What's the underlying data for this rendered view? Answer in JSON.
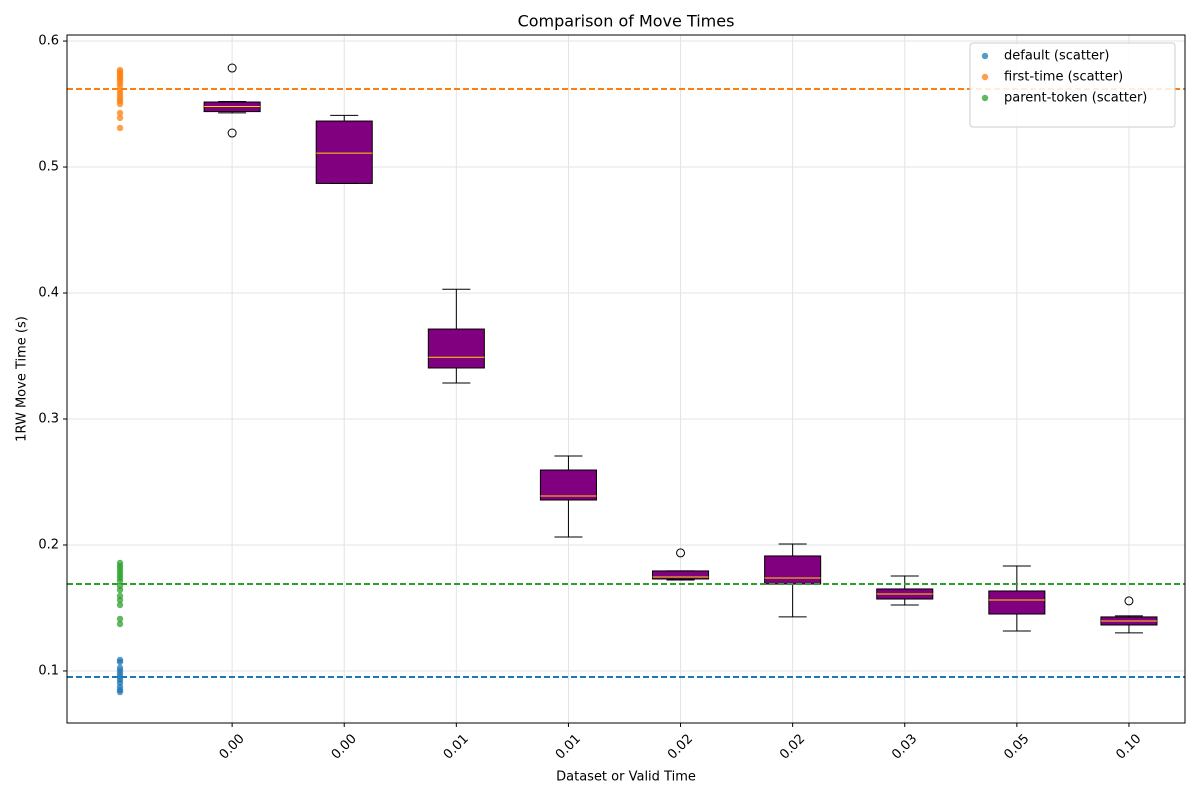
{
  "chart_data": {
    "type": "box",
    "title": "Comparison of Move Times",
    "xlabel": "Dataset or Valid Time",
    "ylabel": "1RW Move Time (s)",
    "categories": [
      null,
      "0.00",
      "0.00",
      "0.01",
      "0.01",
      "0.02",
      "0.02",
      "0.03",
      "0.05",
      "0.10"
    ],
    "xlim": [
      -0.473,
      9.5
    ],
    "ylim": [
      0.0587,
      0.6048
    ],
    "yticks": [
      {
        "value": 0.1,
        "label": "0.1"
      },
      {
        "value": 0.2,
        "label": "0.2"
      },
      {
        "value": 0.3,
        "label": "0.3"
      },
      {
        "value": 0.4,
        "label": "0.4"
      },
      {
        "value": 0.5,
        "label": "0.5"
      },
      {
        "value": 0.6,
        "label": "0.6"
      }
    ],
    "grid": true,
    "legend": "upper right",
    "box_color": "#800080",
    "median_color": "#ffd700",
    "boxes": [
      null,
      {
        "whislo": 0.543,
        "q1": 0.544,
        "med": 0.548,
        "q3": 0.5516,
        "whishi": 0.552,
        "fliers": [
          0.5786,
          0.527
        ]
      },
      {
        "whislo": 0.487,
        "q1": 0.487,
        "med": 0.511,
        "q3": 0.5365,
        "whishi": 0.541,
        "fliers": []
      },
      {
        "whislo": 0.3286,
        "q1": 0.3405,
        "med": 0.349,
        "q3": 0.3714,
        "whishi": 0.403,
        "fliers": []
      },
      {
        "whislo": 0.2063,
        "q1": 0.2357,
        "med": 0.2389,
        "q3": 0.2595,
        "whishi": 0.2706,
        "fliers": []
      },
      {
        "whislo": 0.1722,
        "q1": 0.173,
        "med": 0.1746,
        "q3": 0.1794,
        "whishi": 0.1794,
        "fliers": [
          0.1937
        ]
      },
      {
        "whislo": 0.1429,
        "q1": 0.169,
        "med": 0.1738,
        "q3": 0.1913,
        "whishi": 0.2008,
        "fliers": []
      },
      {
        "whislo": 0.1524,
        "q1": 0.1571,
        "med": 0.1611,
        "q3": 0.1651,
        "whishi": 0.1754,
        "fliers": []
      },
      {
        "whislo": 0.1317,
        "q1": 0.1452,
        "med": 0.1563,
        "q3": 0.1635,
        "whishi": 0.1833,
        "fliers": []
      },
      {
        "whislo": 0.1302,
        "q1": 0.1365,
        "med": 0.1397,
        "q3": 0.1429,
        "whishi": 0.1437,
        "fliers": [
          0.1556
        ]
      }
    ],
    "series": [
      {
        "name": "default (scatter)",
        "color": "#1f77b4",
        "reference_line": 0.0952,
        "values": [
          0.1087,
          0.1071,
          0.1024,
          0.1,
          0.0976,
          0.0952,
          0.0929,
          0.0905,
          0.0873,
          0.0849,
          0.0833
        ]
      },
      {
        "name": "first-time (scatter)",
        "color": "#ff7f0e",
        "reference_line": 0.5619,
        "values": [
          0.577,
          0.5754,
          0.5738,
          0.5722,
          0.5706,
          0.569,
          0.5667,
          0.5643,
          0.5611,
          0.5587,
          0.5563,
          0.554,
          0.5524,
          0.55,
          0.5429,
          0.539,
          0.531
        ]
      },
      {
        "name": "parent-token (scatter)",
        "color": "#2ca02c",
        "reference_line": 0.169,
        "values": [
          0.1857,
          0.1833,
          0.181,
          0.1786,
          0.1762,
          0.1738,
          0.1714,
          0.1675,
          0.1643,
          0.1595,
          0.1563,
          0.1524,
          0.1413,
          0.1373
        ]
      }
    ]
  }
}
